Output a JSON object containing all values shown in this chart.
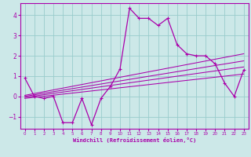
{
  "xlabel": "Windchill (Refroidissement éolien,°C)",
  "background_color": "#cce8e8",
  "line_color": "#aa00aa",
  "grid_color": "#99cccc",
  "xlim": [
    -0.5,
    23.5
  ],
  "ylim": [
    -1.6,
    4.6
  ],
  "yticks": [
    -1,
    0,
    1,
    2,
    3,
    4
  ],
  "xticks": [
    0,
    1,
    2,
    3,
    4,
    5,
    6,
    7,
    8,
    9,
    10,
    11,
    12,
    13,
    14,
    15,
    16,
    17,
    18,
    19,
    20,
    21,
    22,
    23
  ],
  "main_x": [
    0,
    1,
    2,
    3,
    4,
    5,
    6,
    7,
    8,
    9,
    10,
    11,
    12,
    13,
    14,
    15,
    16,
    17,
    18,
    19,
    20,
    21,
    22,
    23
  ],
  "main_y": [
    0.9,
    0.0,
    -0.1,
    0.0,
    -1.3,
    -1.3,
    -0.1,
    -1.4,
    -0.1,
    0.5,
    1.35,
    4.35,
    3.85,
    3.85,
    3.5,
    3.85,
    2.55,
    2.1,
    2.0,
    2.0,
    1.6,
    0.65,
    0.0,
    1.3
  ],
  "trend_lines": [
    {
      "x": [
        0,
        23
      ],
      "y": [
        0.05,
        2.1
      ]
    },
    {
      "x": [
        0,
        23
      ],
      "y": [
        0.0,
        1.75
      ]
    },
    {
      "x": [
        0,
        23
      ],
      "y": [
        -0.05,
        1.45
      ]
    },
    {
      "x": [
        0,
        23
      ],
      "y": [
        -0.1,
        1.1
      ]
    }
  ]
}
